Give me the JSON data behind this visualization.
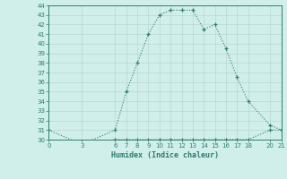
{
  "xlabel": "Humidex (Indice chaleur)",
  "upper_x": [
    0,
    3,
    6,
    7,
    8,
    9,
    10,
    11,
    12,
    13,
    14,
    15,
    16,
    17,
    18,
    20,
    21
  ],
  "upper_y": [
    31,
    29.5,
    31,
    35,
    38,
    41,
    43,
    43.5,
    43.5,
    43.5,
    41.5,
    42,
    39.5,
    36.5,
    34,
    31.5,
    31
  ],
  "lower_x": [
    3,
    6,
    7,
    8,
    9,
    10,
    11,
    12,
    13,
    14,
    15,
    16,
    17,
    18,
    20,
    21
  ],
  "lower_y": [
    29.5,
    30,
    30,
    30,
    30,
    30,
    30,
    30,
    30,
    30,
    30,
    30,
    30,
    30,
    31,
    31
  ],
  "line_color": "#2e7d6e",
  "bg_color": "#d0eeea",
  "grid_color": "#b8d8d2",
  "ylim": [
    30,
    44
  ],
  "xlim": [
    0,
    21
  ],
  "yticks": [
    30,
    31,
    32,
    33,
    34,
    35,
    36,
    37,
    38,
    39,
    40,
    41,
    42,
    43,
    44
  ],
  "xticks": [
    0,
    3,
    6,
    7,
    8,
    9,
    10,
    11,
    12,
    13,
    14,
    15,
    16,
    17,
    18,
    20,
    21
  ]
}
